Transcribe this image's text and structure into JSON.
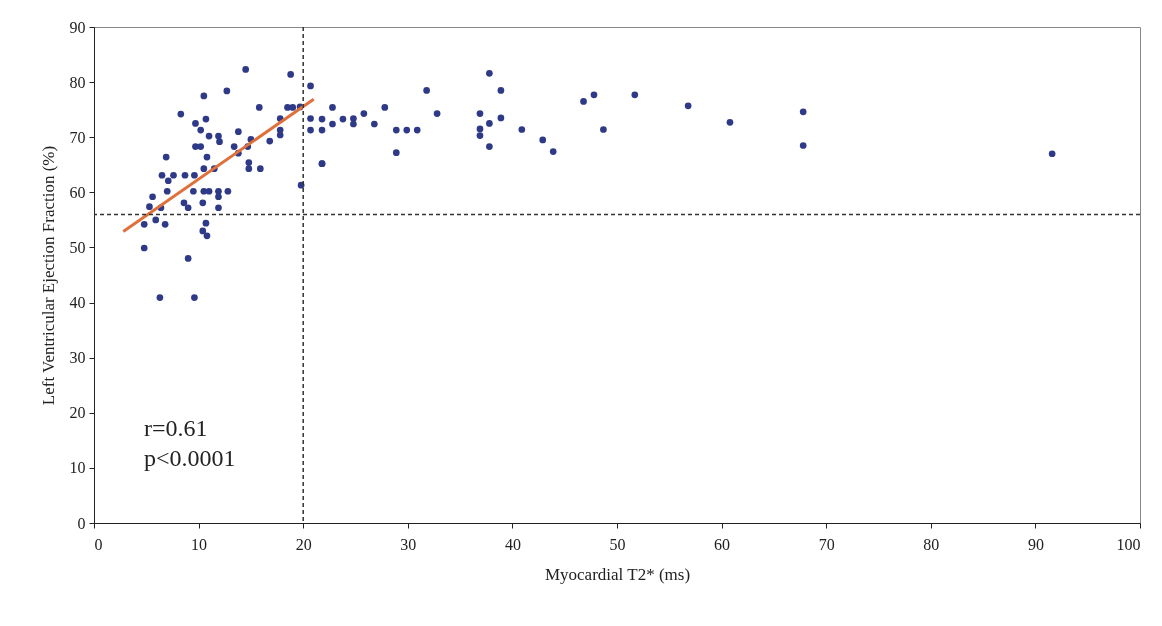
{
  "chart_data": {
    "type": "scatter",
    "xlabel": "Myocardial T2* (ms)",
    "ylabel": "Left Ventricular Ejection Fraction (%)",
    "xlim": [
      0,
      100
    ],
    "ylim": [
      0,
      90
    ],
    "xticks": [
      0,
      10,
      20,
      30,
      40,
      50,
      60,
      70,
      80,
      90,
      100
    ],
    "yticks": [
      0,
      10,
      20,
      30,
      40,
      50,
      60,
      70,
      80,
      90
    ],
    "grid": false,
    "marker": "circle",
    "series": [
      {
        "type": "scatter",
        "color": "#2e3a87",
        "x": [
          14.5,
          18.8,
          20.7,
          10.5,
          12.7,
          15.8,
          8.3,
          18.5,
          19.0,
          19.7,
          10.7,
          9.7,
          10.2,
          11.0,
          11.9,
          12.0,
          13.8,
          17.8,
          17.8,
          17.8,
          16.8,
          20.7,
          20.7,
          15.0,
          14.7,
          13.4,
          13.8,
          9.7,
          10.2,
          10.8,
          6.9,
          14.8,
          14.8,
          15.9,
          10.5,
          11.5,
          6.5,
          7.6,
          8.7,
          9.6,
          7.1,
          7.0,
          9.5,
          10.5,
          11.0,
          11.9,
          12.8,
          11.9,
          5.6,
          5.3,
          6.4,
          8.6,
          9.0,
          10.4,
          11.9,
          19.8,
          4.8,
          5.9,
          6.8,
          10.7,
          10.4,
          10.8,
          4.8,
          9.0,
          6.3,
          9.6,
          22.8,
          21.8,
          21.8,
          21.8,
          21.8,
          22.8,
          23.8,
          24.8,
          24.8,
          25.8,
          26.8,
          27.8,
          28.9,
          29.9,
          30.9,
          28.9,
          31.8,
          32.8,
          37.8,
          38.9,
          36.9,
          37.8,
          38.9,
          36.9,
          36.9,
          37.8,
          40.9,
          42.9,
          43.9,
          46.8,
          47.8,
          48.7,
          51.7,
          56.8,
          60.8,
          67.8,
          67.8,
          91.6
        ],
        "values": [
          82.3,
          81.4,
          79.3,
          77.5,
          78.4,
          75.4,
          74.2,
          75.4,
          75.4,
          75.5,
          73.3,
          72.5,
          71.3,
          70.2,
          70.2,
          69.2,
          71.0,
          73.4,
          71.3,
          70.4,
          69.3,
          73.4,
          71.3,
          69.6,
          68.3,
          68.3,
          67.1,
          68.3,
          68.3,
          66.4,
          66.4,
          65.4,
          64.3,
          64.3,
          64.3,
          64.3,
          63.1,
          63.1,
          63.1,
          63.1,
          62.1,
          60.2,
          60.2,
          60.2,
          60.2,
          60.2,
          60.2,
          59.2,
          59.2,
          57.4,
          57.2,
          58.1,
          57.2,
          58.1,
          57.2,
          61.3,
          54.2,
          55.0,
          54.2,
          54.4,
          53.0,
          52.1,
          49.9,
          48.0,
          40.9,
          40.9,
          75.4,
          73.3,
          71.3,
          65.2,
          65.2,
          72.4,
          73.3,
          73.4,
          72.4,
          74.3,
          72.4,
          75.4,
          71.3,
          71.3,
          71.3,
          67.2,
          78.5,
          74.3,
          81.6,
          78.5,
          74.3,
          72.5,
          73.5,
          71.5,
          70.3,
          68.3,
          71.4,
          69.5,
          67.4,
          76.5,
          77.7,
          71.4,
          77.7,
          75.7,
          72.7,
          74.6,
          68.5,
          67.0
        ]
      },
      {
        "type": "line",
        "marker": "none",
        "color": "#e0703a",
        "x": [
          2.8,
          21.0
        ],
        "values": [
          52.9,
          76.9
        ]
      }
    ],
    "ref_lines": [
      {
        "axis": "x",
        "value": 20,
        "color": "#333333",
        "line_style": "dashed"
      },
      {
        "axis": "y",
        "value": 56,
        "color": "#333333",
        "line_style": "dashed"
      }
    ],
    "annotations": [
      "r=0.61",
      "p<0.0001"
    ]
  }
}
